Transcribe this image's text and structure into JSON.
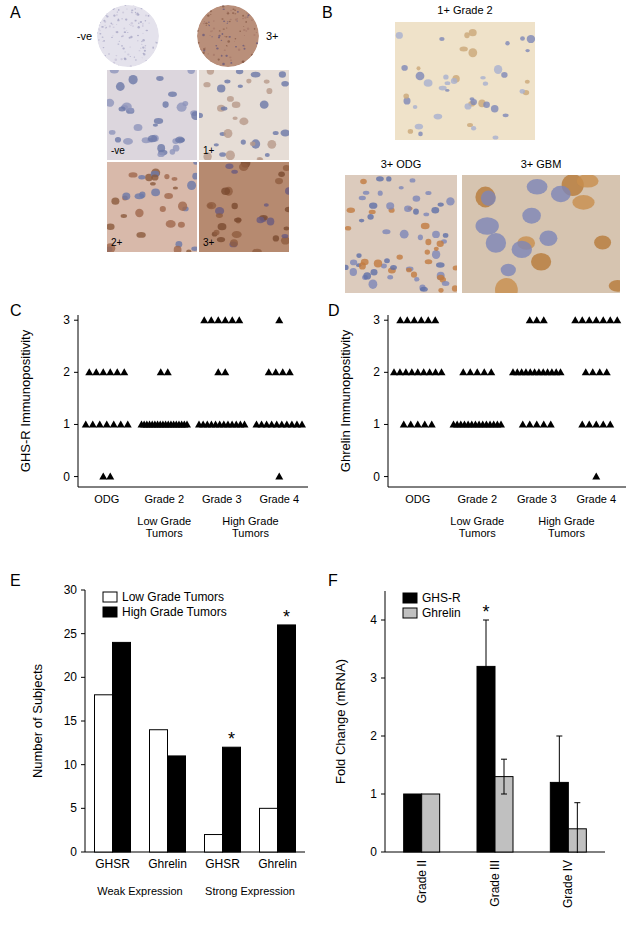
{
  "panel_labels": [
    "A",
    "B",
    "C",
    "D",
    "E",
    "F"
  ],
  "micrographs": {
    "tma_cores": [
      "-ve",
      "3+"
    ],
    "tma_fields": [
      "-ve",
      "1+",
      "2+",
      "3+"
    ],
    "tumor_fields": [
      "1+ Grade 2",
      "3+ ODG",
      "3+ GBM"
    ]
  },
  "chart_data": [
    {
      "type": "strip",
      "marker": "triangle",
      "color": "#000000",
      "categories": [
        "ODG",
        "Grade 2",
        "Grade 3",
        "Grade 4"
      ],
      "groups": [
        {
          "label": "Low Grade Tumors",
          "categories": [
            1
          ]
        },
        {
          "label": "High Grade Tumors",
          "categories": [
            2,
            3
          ]
        }
      ],
      "values": [
        [
          2,
          2,
          2,
          2,
          2,
          2,
          1,
          1,
          1,
          1,
          1,
          1,
          1,
          0,
          0
        ],
        [
          2,
          2,
          1,
          1,
          1,
          1,
          1,
          1,
          1,
          1,
          1,
          1,
          1,
          1,
          1,
          1,
          1,
          1,
          1,
          1
        ],
        [
          3,
          3,
          3,
          3,
          3,
          3,
          2,
          2,
          1,
          1,
          1,
          1,
          1,
          1,
          1,
          1,
          1,
          1,
          1,
          1
        ],
        [
          3,
          2,
          2,
          2,
          2,
          1,
          1,
          1,
          1,
          1,
          1,
          1,
          1,
          1,
          1,
          0
        ]
      ],
      "y_label": "GHS-R Immunopositivity",
      "ylim": [
        -0.2,
        3.1
      ],
      "yticks": [
        0,
        1,
        2,
        3
      ]
    },
    {
      "type": "strip",
      "marker": "triangle",
      "color": "#000000",
      "categories": [
        "ODG",
        "Grade 2",
        "Grade 3",
        "Grade 4"
      ],
      "groups": [
        {
          "label": "Low Grade Tumors",
          "categories": [
            1
          ]
        },
        {
          "label": "High Grade Tumors",
          "categories": [
            2,
            3
          ]
        }
      ],
      "values": [
        [
          3,
          3,
          3,
          3,
          3,
          3,
          2,
          2,
          2,
          2,
          2,
          2,
          2,
          2,
          2,
          1,
          1,
          1,
          1,
          1
        ],
        [
          2,
          2,
          2,
          2,
          2,
          1,
          1,
          1,
          1,
          1,
          1,
          1,
          1,
          1,
          1,
          1,
          1,
          1,
          1
        ],
        [
          3,
          3,
          3,
          2,
          2,
          2,
          2,
          2,
          2,
          2,
          2,
          2,
          2,
          2,
          2,
          1,
          1,
          1,
          1,
          1
        ],
        [
          3,
          3,
          3,
          3,
          3,
          3,
          3,
          2,
          2,
          2,
          2,
          1,
          1,
          1,
          1,
          1,
          0
        ]
      ],
      "y_label": "Ghrelin Immunopositivity",
      "ylim": [
        -0.2,
        3.1
      ],
      "yticks": [
        0,
        1,
        2,
        3
      ]
    },
    {
      "type": "bar",
      "categories": [
        "GHSR",
        "Ghrelin",
        "GHSR",
        "Ghrelin"
      ],
      "groups": [
        {
          "label": "Weak Expression",
          "categories": [
            0,
            1
          ]
        },
        {
          "label": "Strong Expression",
          "categories": [
            2,
            3
          ]
        }
      ],
      "series": [
        {
          "name": "Low Grade Tumors",
          "color": "#ffffff",
          "values": [
            18,
            14,
            2,
            5
          ]
        },
        {
          "name": "High Grade Tumors",
          "color": "#000000",
          "values": [
            24,
            11,
            12,
            26
          ]
        }
      ],
      "y_label": "Number of Subjects",
      "ylim": [
        0,
        30
      ],
      "yticks": [
        0,
        5,
        10,
        15,
        20,
        25,
        30
      ],
      "legend": "top-left",
      "annotations": [
        {
          "text": "*",
          "category": 2,
          "series": 1
        },
        {
          "text": "*",
          "category": 3,
          "series": 1
        }
      ]
    },
    {
      "type": "bar",
      "categories": [
        "Grade II",
        "Grade III",
        "Grade IV"
      ],
      "series": [
        {
          "name": "GHS-R",
          "color": "#000000",
          "values": [
            1,
            3.2,
            1.2
          ],
          "errors": [
            null,
            0.8,
            0.8
          ]
        },
        {
          "name": "Ghrelin",
          "color": "#c0c0c0",
          "values": [
            1,
            1.3,
            0.4
          ],
          "errors": [
            null,
            0.3,
            0.45
          ]
        }
      ],
      "y_label": "Fold Change (mRNA)",
      "ylim": [
        0,
        4.5
      ],
      "yticks": [
        0,
        1,
        2,
        3,
        4
      ],
      "legend": "top-left",
      "annotations": [
        {
          "text": "*",
          "category": 1,
          "series": 0
        }
      ]
    }
  ]
}
